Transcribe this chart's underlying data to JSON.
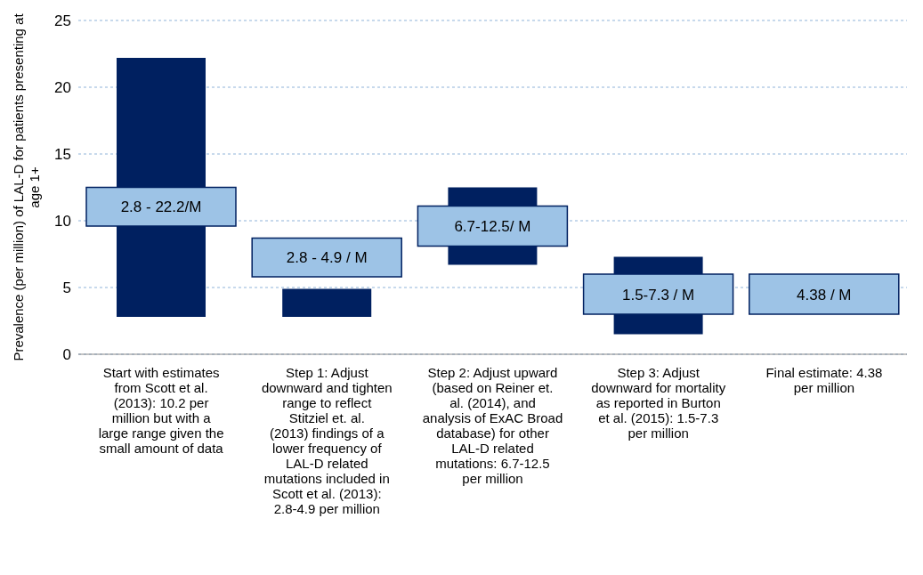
{
  "chart_data": {
    "type": "bar",
    "ylabel": "Prevalence (per million) of LAL-D for patients presenting at age 1+",
    "categories": [
      "Start with estimates from Scott et al. (2013): 10.2 per million but with a large range given the small amount of data",
      "Step 1: Adjust downward and tighten range to reflect Stitziel et. al. (2013) findings of a lower frequency of LAL-D related mutations included in Scott et al. (2013): 2.8-4.9 per million",
      "Step 2: Adjust upward (based on Reiner et. al. (2014), and analysis of ExAC Broad database) for other LAL-D related mutations: 6.7-12.5 per million",
      "Step 3: Adjust downward for mortality as reported in Burton et al. (2015): 1.5-7.3 per million",
      "Final estimate: 4.38 per million"
    ],
    "series": [
      {
        "color": "#002060",
        "base": [
          2.8,
          2.8,
          6.7,
          1.5,
          null
        ],
        "values": [
          19.4,
          2.1,
          5.8,
          5.8,
          null
        ]
      },
      {
        "color": "#9dc3e6",
        "base": [
          9.6,
          5.8,
          8.1,
          3,
          3
        ],
        "values": [
          2.9,
          2.9,
          3,
          3,
          3
        ]
      }
    ],
    "annotations": [
      "2.8 - 22.2/M",
      "2.8 - 4.9 / M",
      "6.7-12.5/ M",
      "1.5-7.3 / M",
      "4.38 / M"
    ],
    "ylim": [
      0,
      25
    ],
    "yticks": [
      0,
      5,
      10,
      15,
      20,
      25
    ],
    "grid": "y",
    "legend": false
  }
}
